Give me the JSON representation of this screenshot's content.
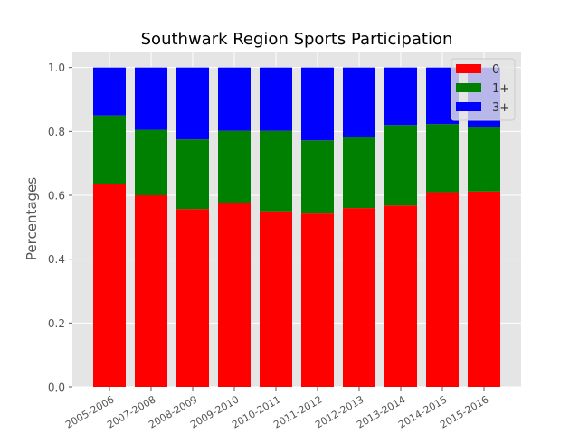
{
  "chart_data": {
    "type": "bar",
    "stacked": true,
    "title": "Southwark Region Sports Participation",
    "xlabel": "",
    "ylabel": "Percentages",
    "ylim": [
      0,
      1.05
    ],
    "yticks": [
      "0.0",
      "0.2",
      "0.4",
      "0.6",
      "0.8",
      "1.0"
    ],
    "grid": true,
    "legend_position": "top-right",
    "categories": [
      "2005-2006",
      "2007-2008",
      "2008-2009",
      "2009-2010",
      "2010-2011",
      "2011-2012",
      "2012-2013",
      "2013-2014",
      "2014-2015",
      "2015-2016"
    ],
    "series": [
      {
        "name": "0",
        "color": "#ff0000",
        "values": [
          0.635,
          0.6,
          0.557,
          0.577,
          0.55,
          0.543,
          0.56,
          0.568,
          0.61,
          0.612
        ]
      },
      {
        "name": "1+",
        "color": "#008000",
        "values": [
          0.215,
          0.205,
          0.218,
          0.225,
          0.252,
          0.229,
          0.223,
          0.252,
          0.213,
          0.203
        ]
      },
      {
        "name": "3+",
        "color": "#0000ff",
        "values": [
          0.15,
          0.195,
          0.225,
          0.198,
          0.198,
          0.228,
          0.217,
          0.18,
          0.177,
          0.185
        ]
      }
    ]
  }
}
